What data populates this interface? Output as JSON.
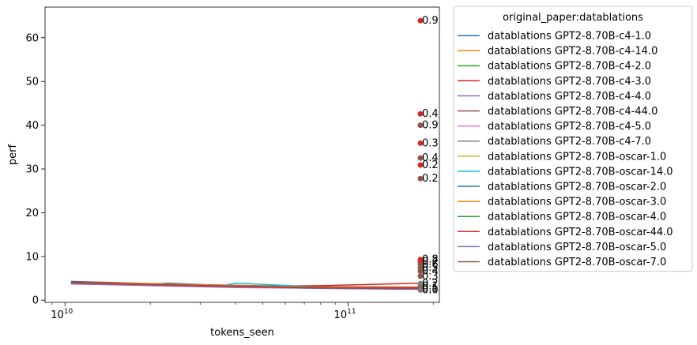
{
  "chart_data": {
    "type": "line",
    "xscale": "log",
    "xlabel": "tokens_seen",
    "ylabel": "perf",
    "xlim": [
      8500000000.0,
      210000000000.0
    ],
    "ylim": [
      -0.5,
      67
    ],
    "xticks": [
      {
        "value": 10000000000.0,
        "label": "10",
        "exp": "10"
      },
      {
        "value": 100000000000.0,
        "label": "10",
        "exp": "11"
      }
    ],
    "yticks": [
      0,
      10,
      20,
      30,
      40,
      50,
      60
    ],
    "legend": {
      "title": "original_paper:datablations",
      "placement": "outside-right"
    },
    "series": [
      {
        "name": "datablations GPT2-8.70B-c4-1.0",
        "color": "#1f77b4",
        "x": [
          10500000000.0,
          20000000000.0,
          40000000000.0,
          80000000000.0,
          180000000000.0
        ],
        "y": [
          4.0,
          3.6,
          3.2,
          2.9,
          2.7
        ]
      },
      {
        "name": "datablations GPT2-8.70B-c4-14.0",
        "color": "#ff7f0e",
        "x": [
          10500000000.0,
          20000000000.0,
          40000000000.0,
          80000000000.0,
          180000000000.0
        ],
        "y": [
          4.1,
          3.7,
          3.3,
          3.0,
          2.8
        ]
      },
      {
        "name": "datablations GPT2-8.70B-c4-2.0",
        "color": "#2ca02c",
        "x": [
          10500000000.0,
          20000000000.0,
          40000000000.0,
          80000000000.0,
          180000000000.0
        ],
        "y": [
          3.9,
          3.5,
          3.1,
          2.8,
          2.6
        ]
      },
      {
        "name": "datablations GPT2-8.70B-c4-3.0",
        "color": "#d62728",
        "x": [
          10500000000.0,
          20000000000.0,
          40000000000.0,
          80000000000.0,
          180000000000.0
        ],
        "y": [
          4.2,
          3.7,
          3.2,
          3.3,
          3.9
        ]
      },
      {
        "name": "datablations GPT2-8.70B-c4-4.0",
        "color": "#9467bd",
        "x": [
          10500000000.0,
          20000000000.0,
          40000000000.0,
          80000000000.0,
          180000000000.0
        ],
        "y": [
          3.8,
          3.4,
          3.0,
          2.8,
          2.6
        ]
      },
      {
        "name": "datablations GPT2-8.70B-c4-44.0",
        "color": "#8c564b",
        "x": [
          10500000000.0,
          20000000000.0,
          40000000000.0,
          80000000000.0,
          180000000000.0
        ],
        "y": [
          4.3,
          3.8,
          3.4,
          3.1,
          3.0
        ]
      },
      {
        "name": "datablations GPT2-8.70B-c4-5.0",
        "color": "#e377c2",
        "x": [
          10500000000.0,
          20000000000.0,
          40000000000.0,
          80000000000.0,
          180000000000.0
        ],
        "y": [
          3.7,
          3.3,
          2.9,
          2.7,
          2.5
        ]
      },
      {
        "name": "datablations GPT2-8.70B-c4-7.0",
        "color": "#7f7f7f",
        "x": [
          10500000000.0,
          20000000000.0,
          40000000000.0,
          80000000000.0,
          180000000000.0
        ],
        "y": [
          3.9,
          3.4,
          3.1,
          2.8,
          2.6
        ]
      },
      {
        "name": "datablations GPT2-8.70B-oscar-1.0",
        "color": "#bcbd22",
        "x": [
          10500000000.0,
          20000000000.0,
          40000000000.0,
          80000000000.0,
          180000000000.0
        ],
        "y": [
          4.0,
          3.5,
          3.1,
          2.8,
          2.6
        ]
      },
      {
        "name": "datablations GPT2-8.70B-oscar-14.0",
        "color": "#17becf",
        "x": [
          10500000000.0,
          20000000000.0,
          36000000000.0,
          40000000000.0,
          80000000000.0,
          180000000000.0
        ],
        "y": [
          4.1,
          3.6,
          3.3,
          3.9,
          3.0,
          2.8
        ]
      },
      {
        "name": "datablations GPT2-8.70B-oscar-2.0",
        "color": "#1f77b4",
        "x": [
          10500000000.0,
          20000000000.0,
          23000000000.0,
          40000000000.0,
          80000000000.0,
          180000000000.0
        ],
        "y": [
          4.2,
          3.6,
          3.9,
          3.2,
          2.9,
          2.7
        ]
      },
      {
        "name": "datablations GPT2-8.70B-oscar-3.0",
        "color": "#ff7f0e",
        "x": [
          10500000000.0,
          20000000000.0,
          40000000000.0,
          80000000000.0,
          180000000000.0
        ],
        "y": [
          4.0,
          3.8,
          3.3,
          3.0,
          2.9
        ]
      },
      {
        "name": "datablations GPT2-8.70B-oscar-4.0",
        "color": "#2ca02c",
        "x": [
          10500000000.0,
          20000000000.0,
          40000000000.0,
          80000000000.0,
          180000000000.0
        ],
        "y": [
          3.9,
          3.5,
          3.1,
          2.9,
          2.7
        ]
      },
      {
        "name": "datablations GPT2-8.70B-oscar-44.0",
        "color": "#d62728",
        "x": [
          10500000000.0,
          20000000000.0,
          40000000000.0,
          80000000000.0,
          180000000000.0
        ],
        "y": [
          4.0,
          3.6,
          3.2,
          2.9,
          2.8
        ]
      },
      {
        "name": "datablations GPT2-8.70B-oscar-5.0",
        "color": "#9467bd",
        "x": [
          10500000000.0,
          20000000000.0,
          40000000000.0,
          80000000000.0,
          180000000000.0
        ],
        "y": [
          3.8,
          3.4,
          3.0,
          2.7,
          2.5
        ]
      },
      {
        "name": "datablations GPT2-8.70B-oscar-7.0",
        "color": "#8c564b",
        "x": [
          10500000000.0,
          20000000000.0,
          40000000000.0,
          80000000000.0,
          180000000000.0
        ],
        "y": [
          3.9,
          3.5,
          3.1,
          2.8,
          2.6
        ]
      }
    ],
    "points": [
      {
        "x": 180000000000.0,
        "y": 63.9,
        "label": "0.9",
        "color": "#d62728"
      },
      {
        "x": 180000000000.0,
        "y": 42.6,
        "label": "0.4",
        "color": "#d62728"
      },
      {
        "x": 180000000000.0,
        "y": 40.0,
        "label": "0.9",
        "color": "#8c564b"
      },
      {
        "x": 180000000000.0,
        "y": 35.9,
        "label": "0.3",
        "color": "#d62728"
      },
      {
        "x": 180000000000.0,
        "y": 32.5,
        "label": "0.4",
        "color": "#8c564b"
      },
      {
        "x": 180000000000.0,
        "y": 30.9,
        "label": "0.2",
        "color": "#d62728"
      },
      {
        "x": 180000000000.0,
        "y": 27.8,
        "label": "0.2",
        "color": "#8c564b"
      },
      {
        "x": 180000000000.0,
        "y": 9.3,
        "label": "0.8",
        "color": "#d62728"
      },
      {
        "x": 180000000000.0,
        "y": 8.8,
        "label": "0.7",
        "color": "#d62728"
      },
      {
        "x": 180000000000.0,
        "y": 8.2,
        "label": "0.6",
        "color": "#8c564b"
      },
      {
        "x": 180000000000.0,
        "y": 7.4,
        "label": "0.5",
        "color": "#8c564b"
      },
      {
        "x": 180000000000.0,
        "y": 6.6,
        "label": "0.4",
        "color": "#8c564b"
      },
      {
        "x": 180000000000.0,
        "y": 5.5,
        "label": "0.3",
        "color": "#8c564b"
      },
      {
        "x": 180000000000.0,
        "y": 3.8,
        "label": "0.2",
        "color": "#7f7f7f"
      },
      {
        "x": 180000000000.0,
        "y": 3.2,
        "label": "0.1",
        "color": "#7f7f7f"
      },
      {
        "x": 180000000000.0,
        "y": 2.7,
        "label": "0.1",
        "color": "#8c564b"
      },
      {
        "x": 180000000000.0,
        "y": 2.3,
        "label": "0.0",
        "color": "#7f7f7f"
      }
    ]
  }
}
